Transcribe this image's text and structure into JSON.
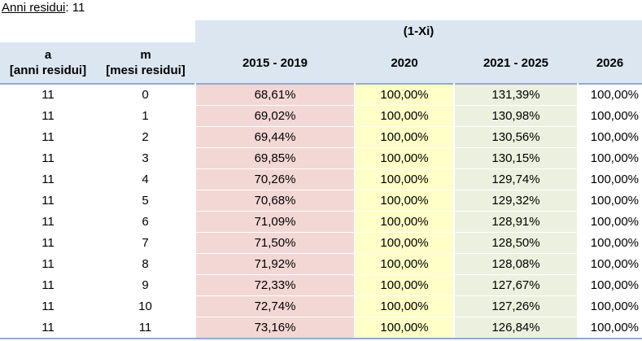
{
  "caption": {
    "label": "Anni residui",
    "sep": ":",
    "value": "11"
  },
  "header": {
    "group_label": "(1-Xi)",
    "col_a": "a",
    "col_a_sub": "[anni residui]",
    "col_m": "m",
    "col_m_sub": "[mesi residui]",
    "periods": [
      "2015 - 2019",
      "2020",
      "2021 - 2025",
      "2026"
    ]
  },
  "rows": [
    [
      "11",
      "0",
      "68,61%",
      "100,00%",
      "131,39%",
      "100,00%"
    ],
    [
      "11",
      "1",
      "69,02%",
      "100,00%",
      "130,98%",
      "100,00%"
    ],
    [
      "11",
      "2",
      "69,44%",
      "100,00%",
      "130,56%",
      "100,00%"
    ],
    [
      "11",
      "3",
      "69,85%",
      "100,00%",
      "130,15%",
      "100,00%"
    ],
    [
      "11",
      "4",
      "70,26%",
      "100,00%",
      "129,74%",
      "100,00%"
    ],
    [
      "11",
      "5",
      "70,68%",
      "100,00%",
      "129,32%",
      "100,00%"
    ],
    [
      "11",
      "6",
      "71,09%",
      "100,00%",
      "128,91%",
      "100,00%"
    ],
    [
      "11",
      "7",
      "71,50%",
      "100,00%",
      "128,50%",
      "100,00%"
    ],
    [
      "11",
      "8",
      "71,92%",
      "100,00%",
      "128,08%",
      "100,00%"
    ],
    [
      "11",
      "9",
      "72,33%",
      "100,00%",
      "127,67%",
      "100,00%"
    ],
    [
      "11",
      "10",
      "72,74%",
      "100,00%",
      "127,26%",
      "100,00%"
    ],
    [
      "11",
      "11",
      "73,16%",
      "100,00%",
      "126,84%",
      "100,00%"
    ]
  ]
}
